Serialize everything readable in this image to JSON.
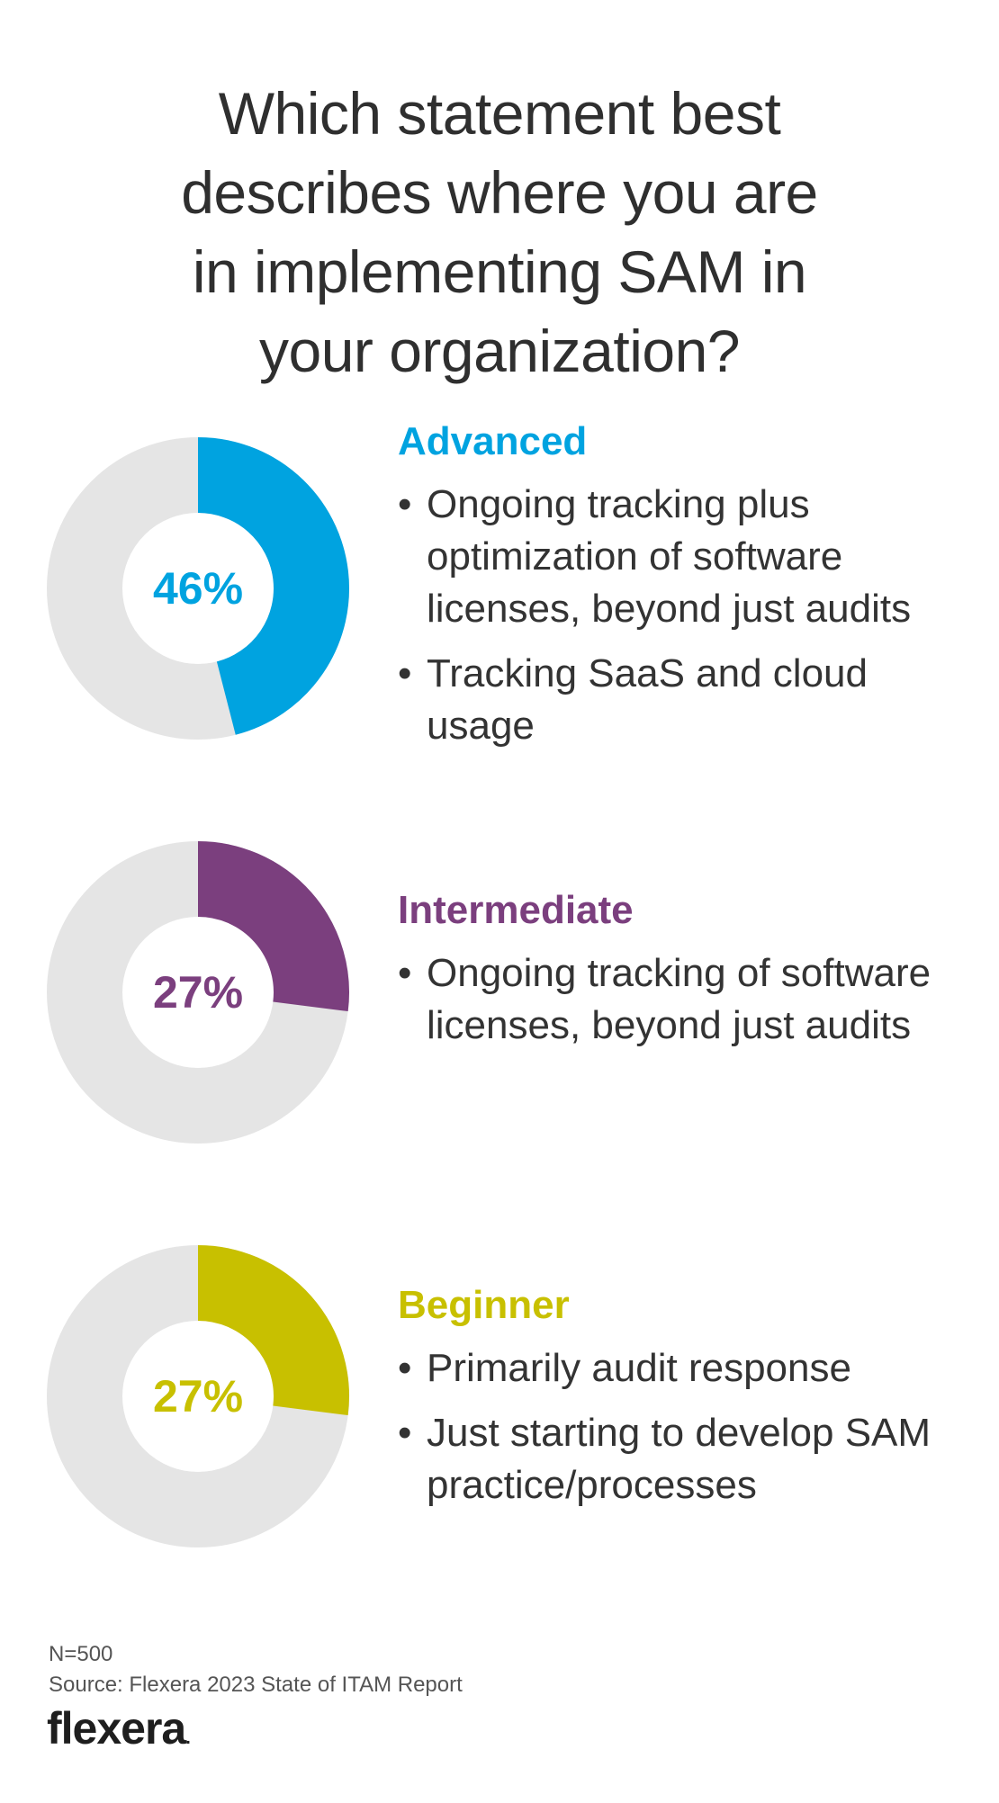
{
  "title_lines": [
    "Which statement best",
    "describes where you are",
    "in implementing SAM in",
    "your organization?"
  ],
  "chart_data": {
    "type": "pie",
    "variant": "donut",
    "donut_track_color": "#e5e5e5",
    "series": [
      {
        "name": "Advanced",
        "value": 46,
        "label": "46%",
        "color": "#00a3e0",
        "bullets": [
          "Ongoing tracking plus optimization of software licenses, beyond just audits",
          "Tracking SaaS and cloud usage"
        ]
      },
      {
        "name": "Intermediate",
        "value": 27,
        "label": "27%",
        "color": "#7b3f7e",
        "bullets": [
          "Ongoing tracking of software licenses, beyond just audits"
        ]
      },
      {
        "name": "Beginner",
        "value": 27,
        "label": "27%",
        "color": "#c8c000",
        "bullets": [
          "Primarily audit response",
          "Just starting to develop SAM practice/processes"
        ]
      }
    ]
  },
  "footer": {
    "n": "N=500",
    "source": "Source: Flexera 2023 State of ITAM Report"
  },
  "logo": {
    "text": "flexera"
  },
  "bullet_glyph": "•"
}
